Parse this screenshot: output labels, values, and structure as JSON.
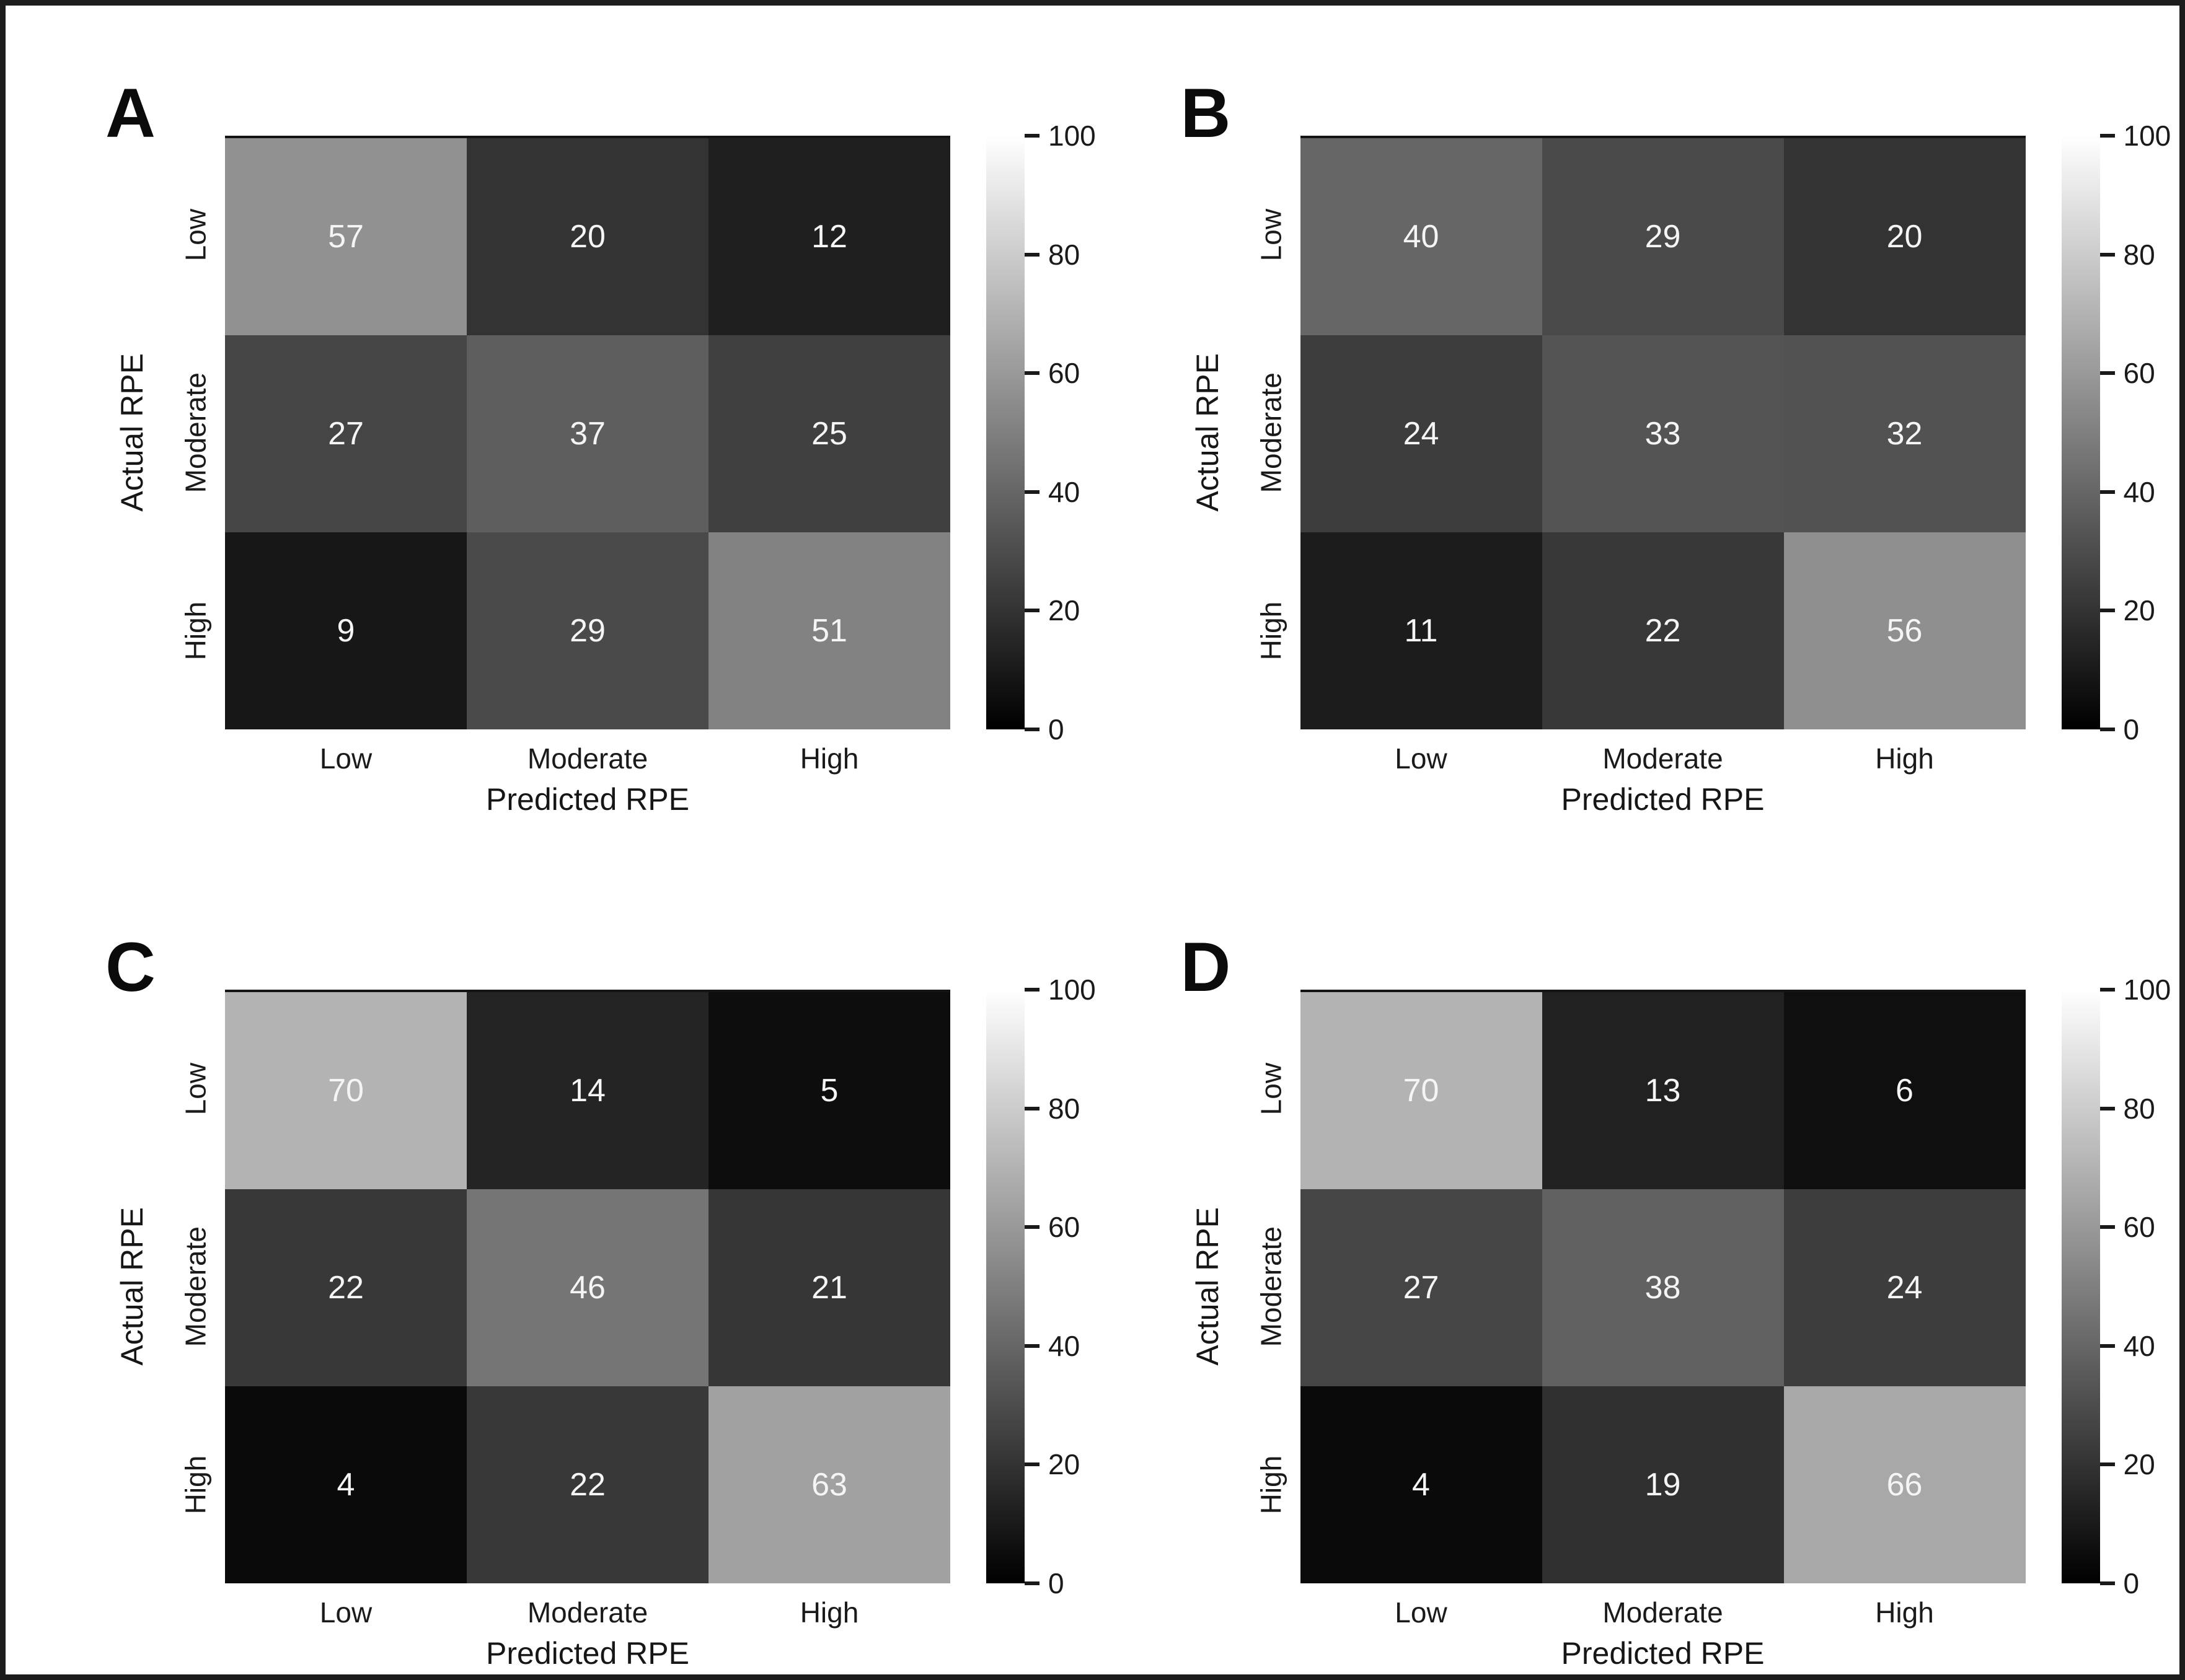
{
  "figure": {
    "background": "#ffffff",
    "frame_color": "#1c1c1c"
  },
  "axes": {
    "x_label": "Predicted RPE",
    "y_label": "Actual RPE",
    "x_ticks": [
      "Low",
      "Moderate",
      "High"
    ],
    "y_ticks": [
      "Low",
      "Moderate",
      "High"
    ]
  },
  "colorbar": {
    "min": 0,
    "max": 100,
    "ticks": [
      "100",
      "80",
      "60",
      "40",
      "20",
      "0"
    ],
    "top_color": "#ffffff",
    "bottom_color": "#000000"
  },
  "chart_data": [
    {
      "type": "heatmap",
      "panel": "A",
      "x": [
        "Low",
        "Moderate",
        "High"
      ],
      "y": [
        "Low",
        "Moderate",
        "High"
      ],
      "values": [
        [
          57,
          20,
          12
        ],
        [
          27,
          37,
          25
        ],
        [
          9,
          29,
          51
        ]
      ],
      "xlabel": "Predicted RPE",
      "ylabel": "Actual RPE",
      "vmin": 0,
      "vmax": 100,
      "colormap": "gray",
      "legend_position": "right-colorbar",
      "grid": false
    },
    {
      "type": "heatmap",
      "panel": "B",
      "x": [
        "Low",
        "Moderate",
        "High"
      ],
      "y": [
        "Low",
        "Moderate",
        "High"
      ],
      "values": [
        [
          40,
          29,
          20
        ],
        [
          24,
          33,
          32
        ],
        [
          11,
          22,
          56
        ]
      ],
      "xlabel": "Predicted RPE",
      "ylabel": "Actual RPE",
      "vmin": 0,
      "vmax": 100,
      "colormap": "gray",
      "legend_position": "right-colorbar",
      "grid": false
    },
    {
      "type": "heatmap",
      "panel": "C",
      "x": [
        "Low",
        "Moderate",
        "High"
      ],
      "y": [
        "Low",
        "Moderate",
        "High"
      ],
      "values": [
        [
          70,
          14,
          5
        ],
        [
          22,
          46,
          21
        ],
        [
          4,
          22,
          63
        ]
      ],
      "xlabel": "Predicted RPE",
      "ylabel": "Actual RPE",
      "vmin": 0,
      "vmax": 100,
      "colormap": "gray",
      "legend_position": "right-colorbar",
      "grid": false
    },
    {
      "type": "heatmap",
      "panel": "D",
      "x": [
        "Low",
        "Moderate",
        "High"
      ],
      "y": [
        "Low",
        "Moderate",
        "High"
      ],
      "values": [
        [
          70,
          13,
          6
        ],
        [
          27,
          38,
          24
        ],
        [
          4,
          19,
          66
        ]
      ],
      "xlabel": "Predicted RPE",
      "ylabel": "Actual RPE",
      "vmin": 0,
      "vmax": 100,
      "colormap": "gray",
      "legend_position": "right-colorbar",
      "grid": false
    }
  ]
}
